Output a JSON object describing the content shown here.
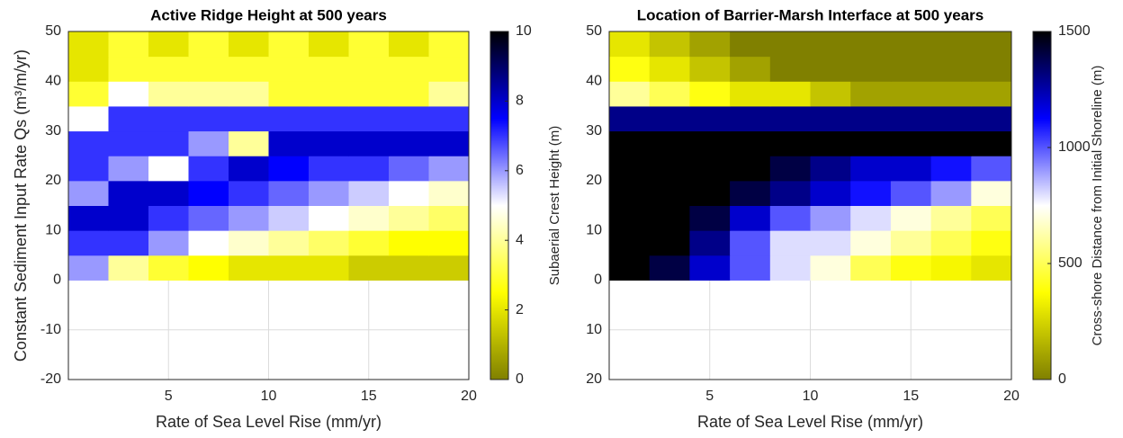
{
  "chart_data": [
    {
      "type": "heatmap",
      "title": "Active Ridge Height at 500 years",
      "x_label": "Rate of Sea Level Rise (mm/yr)",
      "y_label": "Constant Sediment Input Rate Qs (m³/m/yr)",
      "xlim": [
        0,
        20
      ],
      "xticks": [
        5,
        10,
        15,
        20
      ],
      "ylim": [
        -20,
        50
      ],
      "yticks": [
        -20,
        -10,
        0,
        10,
        20,
        30,
        40,
        50
      ],
      "grid": true,
      "x": [
        1,
        3,
        5,
        7,
        9,
        11,
        13,
        15,
        17,
        19
      ],
      "y": [
        2.5,
        7.5,
        12.5,
        17.5,
        22.5,
        27.5,
        32.5,
        37.5,
        42.5,
        47.5
      ],
      "values": [
        [
          6,
          4,
          3,
          2.5,
          2,
          2,
          2,
          1.5,
          1.5,
          1.5
        ],
        [
          7,
          7,
          6,
          5,
          4.5,
          4,
          3.5,
          3,
          2.5,
          2.5
        ],
        [
          8,
          8,
          7,
          6.5,
          6,
          5.5,
          5,
          4.5,
          4,
          3.5
        ],
        [
          6,
          8,
          8,
          7.5,
          7,
          6.5,
          6,
          5.5,
          5,
          4.5
        ],
        [
          7,
          6,
          5,
          7,
          8,
          7.5,
          7,
          7,
          6.5,
          6
        ],
        [
          7,
          7,
          7,
          6,
          4,
          8,
          8,
          8,
          8,
          8
        ],
        [
          5,
          7,
          7,
          7,
          7,
          7,
          7,
          7,
          7,
          7
        ],
        [
          3,
          5,
          4,
          4,
          4,
          3,
          3,
          3,
          3,
          4
        ],
        [
          2,
          3,
          3,
          3,
          3,
          3,
          3,
          3,
          3,
          3
        ],
        [
          2,
          3,
          2,
          3,
          2,
          3,
          2,
          3,
          2,
          3
        ]
      ],
      "colormap": [
        "#808000",
        "#ffff00",
        "#ffffff",
        "#0000ff",
        "#000000"
      ],
      "colorbar_label": "Subaerial Crest Height (m)",
      "clim": [
        0,
        10
      ],
      "cticks": [
        0,
        2,
        4,
        6,
        8,
        10
      ]
    },
    {
      "type": "heatmap",
      "title": "Location of Barrier-Marsh Interface at 500 years",
      "x_label": "Rate of Sea Level Rise (mm/yr)",
      "xlim": [
        0,
        20
      ],
      "xticks": [
        5,
        10,
        15,
        20
      ],
      "ylim": [
        -20,
        50
      ],
      "yticks": [
        {
          "value": -20,
          "label": "20"
        },
        {
          "value": -10,
          "label": "10"
        },
        0,
        10,
        20,
        30,
        40,
        50
      ],
      "grid": true,
      "x": [
        1,
        3,
        5,
        7,
        9,
        11,
        13,
        15,
        17,
        19
      ],
      "y": [
        2.5,
        7.5,
        12.5,
        17.5,
        22.5,
        27.5,
        32.5,
        37.5,
        42.5,
        47.5
      ],
      "values": [
        [
          1500,
          1400,
          1200,
          1000,
          800,
          700,
          500,
          400,
          350,
          300
        ],
        [
          1500,
          1500,
          1300,
          1000,
          800,
          800,
          700,
          600,
          500,
          400
        ],
        [
          1500,
          1500,
          1400,
          1200,
          1000,
          900,
          800,
          700,
          600,
          500
        ],
        [
          1500,
          1500,
          1500,
          1400,
          1300,
          1200,
          1100,
          1000,
          900,
          700
        ],
        [
          1500,
          1500,
          1500,
          1500,
          1400,
          1300,
          1200,
          1200,
          1100,
          1000
        ],
        [
          1500,
          1500,
          1500,
          1500,
          1500,
          1500,
          1500,
          1500,
          1500,
          1500
        ],
        [
          1300,
          1300,
          1300,
          1300,
          1300,
          1300,
          1300,
          1300,
          1300,
          1300
        ],
        [
          600,
          500,
          400,
          300,
          300,
          200,
          100,
          100,
          100,
          100
        ],
        [
          400,
          300,
          200,
          100,
          0,
          0,
          0,
          0,
          0,
          0
        ],
        [
          300,
          200,
          100,
          0,
          0,
          0,
          0,
          0,
          0,
          0
        ]
      ],
      "colormap": [
        "#808000",
        "#ffff00",
        "#ffffff",
        "#0000ff",
        "#000000"
      ],
      "colorbar_label": "Cross-shore Distance from Initial Shoreline (m)",
      "clim": [
        0,
        1500
      ],
      "cticks": [
        0,
        500,
        1000,
        1500
      ]
    }
  ]
}
